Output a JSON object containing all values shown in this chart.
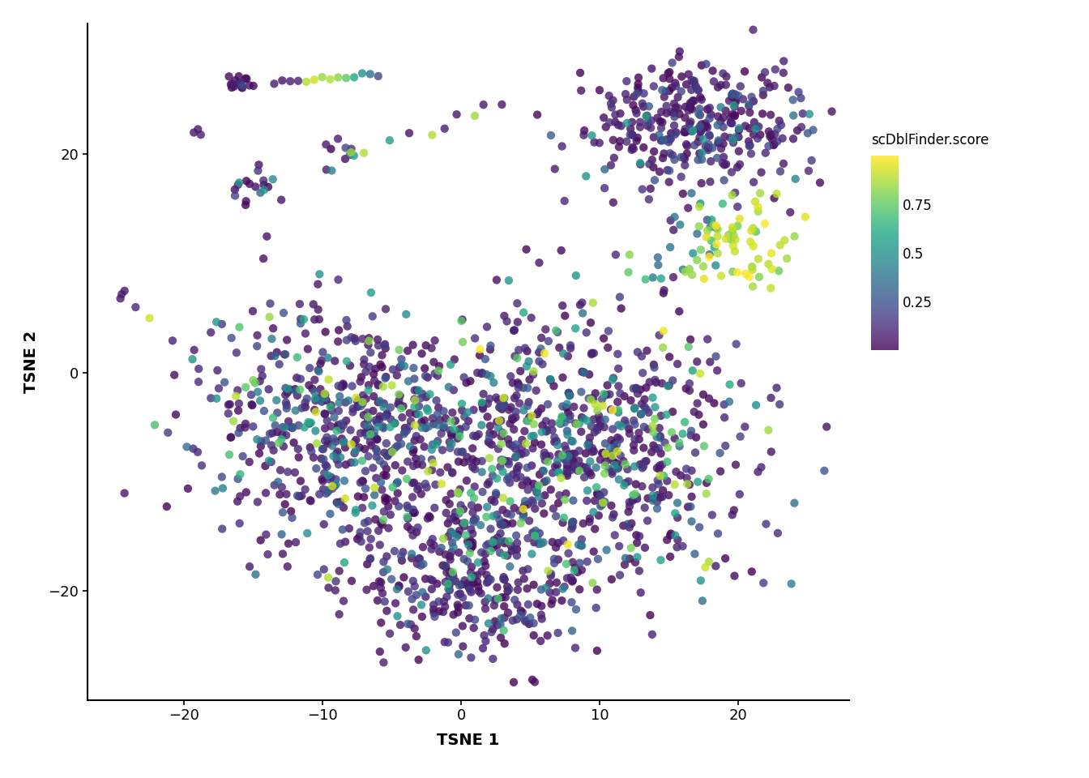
{
  "title": "",
  "xlabel": "TSNE 1",
  "ylabel": "TSNE 2",
  "xlim": [
    -27,
    28
  ],
  "ylim": [
    -30,
    32
  ],
  "xticks": [
    -20,
    -10,
    0,
    10,
    20
  ],
  "yticks": [
    -20,
    0,
    20
  ],
  "colormap": "viridis",
  "clim": [
    0.0,
    1.0
  ],
  "cbar_ticks": [
    0.25,
    0.5,
    0.75
  ],
  "cbar_label": "scDblFinder.score",
  "point_size": 55,
  "alpha": 0.8,
  "background_color": "#ffffff",
  "seed": 42
}
